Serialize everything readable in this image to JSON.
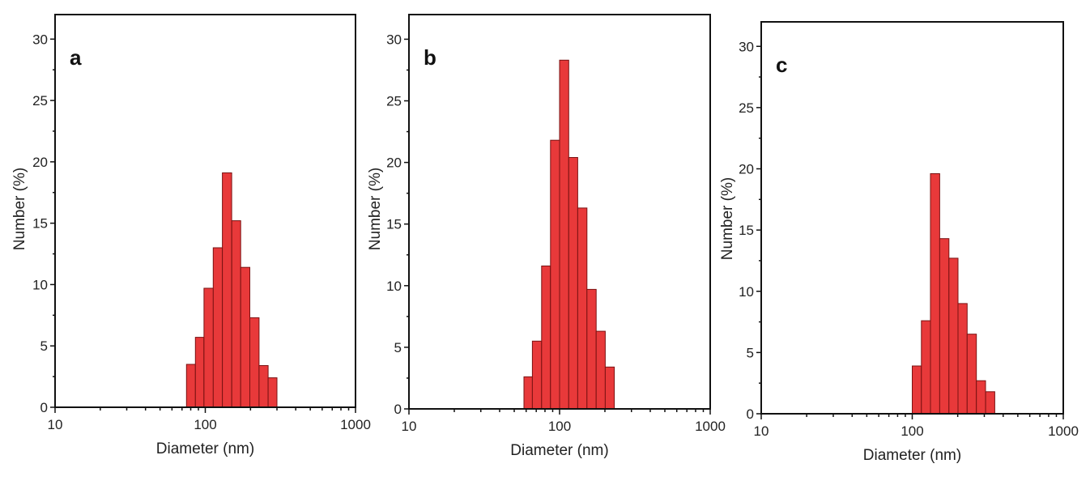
{
  "chart_data": [
    {
      "type": "bar",
      "panel_label": "a",
      "xlabel": "Diameter (nm)",
      "ylabel": "Number (%)",
      "xscale": "log",
      "xlim": [
        10,
        1000
      ],
      "ylim": [
        0,
        32
      ],
      "xticks": [
        "10",
        "100",
        "1000"
      ],
      "yticks": [
        "0",
        "5",
        "10",
        "15",
        "20",
        "25",
        "30"
      ],
      "color": "#e8393a",
      "bins": [
        {
          "x0": 75,
          "x1": 86,
          "y": 3.5
        },
        {
          "x0": 86,
          "x1": 98,
          "y": 5.7
        },
        {
          "x0": 98,
          "x1": 113,
          "y": 9.7
        },
        {
          "x0": 113,
          "x1": 130,
          "y": 13.0
        },
        {
          "x0": 130,
          "x1": 150,
          "y": 19.1
        },
        {
          "x0": 150,
          "x1": 172,
          "y": 15.2
        },
        {
          "x0": 172,
          "x1": 198,
          "y": 11.4
        },
        {
          "x0": 198,
          "x1": 228,
          "y": 7.3
        },
        {
          "x0": 228,
          "x1": 262,
          "y": 3.4
        },
        {
          "x0": 262,
          "x1": 300,
          "y": 2.4
        }
      ]
    },
    {
      "type": "bar",
      "panel_label": "b",
      "xlabel": "Diameter (nm)",
      "ylabel": "Number (%)",
      "xscale": "log",
      "xlim": [
        10,
        1000
      ],
      "ylim": [
        0,
        32
      ],
      "xticks": [
        "10",
        "100",
        "1000"
      ],
      "yticks": [
        "0",
        "5",
        "10",
        "15",
        "20",
        "25",
        "30"
      ],
      "color": "#e8393a",
      "bins": [
        {
          "x0": 58,
          "x1": 66,
          "y": 2.6
        },
        {
          "x0": 66,
          "x1": 76,
          "y": 5.5
        },
        {
          "x0": 76,
          "x1": 87,
          "y": 11.6
        },
        {
          "x0": 87,
          "x1": 100,
          "y": 21.8
        },
        {
          "x0": 100,
          "x1": 115,
          "y": 28.3
        },
        {
          "x0": 115,
          "x1": 132,
          "y": 20.4
        },
        {
          "x0": 132,
          "x1": 152,
          "y": 16.3
        },
        {
          "x0": 152,
          "x1": 175,
          "y": 9.7
        },
        {
          "x0": 175,
          "x1": 201,
          "y": 6.3
        },
        {
          "x0": 201,
          "x1": 231,
          "y": 3.4
        }
      ]
    },
    {
      "type": "bar",
      "panel_label": "c",
      "xlabel": "Diameter (nm)",
      "ylabel": "Number (%)",
      "xscale": "log",
      "xlim": [
        10,
        1000
      ],
      "ylim": [
        0,
        32
      ],
      "xticks": [
        "10",
        "100",
        "1000"
      ],
      "yticks": [
        "0",
        "5",
        "10",
        "15",
        "20",
        "25",
        "30"
      ],
      "color": "#e8393a",
      "bins": [
        {
          "x0": 100,
          "x1": 115,
          "y": 3.9
        },
        {
          "x0": 115,
          "x1": 132,
          "y": 7.6
        },
        {
          "x0": 132,
          "x1": 152,
          "y": 19.6
        },
        {
          "x0": 152,
          "x1": 175,
          "y": 14.3
        },
        {
          "x0": 175,
          "x1": 201,
          "y": 12.7
        },
        {
          "x0": 201,
          "x1": 231,
          "y": 9.0
        },
        {
          "x0": 231,
          "x1": 266,
          "y": 6.5
        },
        {
          "x0": 266,
          "x1": 306,
          "y": 2.7
        },
        {
          "x0": 306,
          "x1": 352,
          "y": 1.8
        }
      ]
    }
  ]
}
